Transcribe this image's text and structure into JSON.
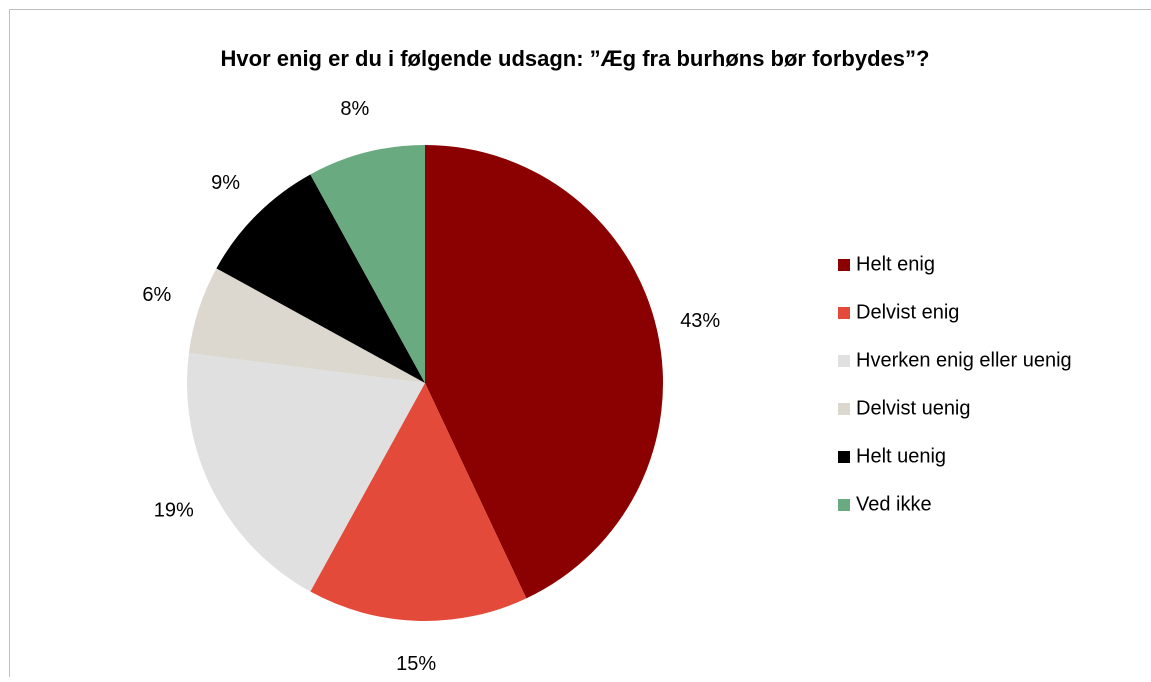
{
  "chart_data": {
    "type": "pie",
    "title": "Hvor enig er du i følgende udsagn: ”Æg fra burhøns bør forbydes”?",
    "categories": [
      "Helt enig",
      "Delvist enig",
      "Hverken enig eller uenig",
      "Delvist uenig",
      "Helt uenig",
      "Ved ikke"
    ],
    "values": [
      43,
      15,
      19,
      6,
      9,
      8
    ],
    "value_labels": [
      "43%",
      "15%",
      "19%",
      "6%",
      "9%",
      "8%"
    ],
    "colors": [
      "#8b0000",
      "#e34a3a",
      "#e0e0e0",
      "#ddd8cf",
      "#000000",
      "#6aaa80"
    ],
    "legend": "right"
  }
}
